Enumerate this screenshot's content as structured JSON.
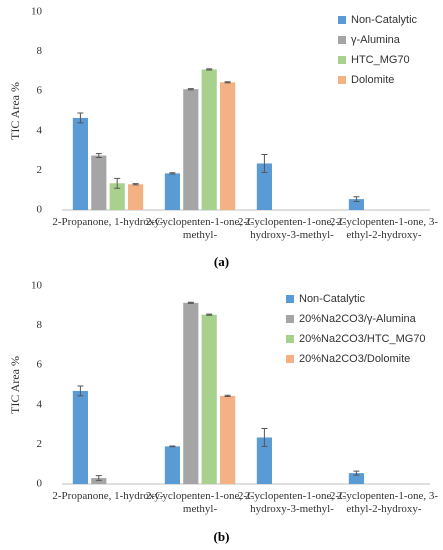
{
  "chart_data": [
    {
      "type": "bar",
      "caption": "(a)",
      "y_label": "TIC Area %",
      "categories": [
        "2-Propanone, 1-hydroxy-",
        "2-Cyclopenten-1-one, 2-methyl-",
        "2-Cyclopenten-1-one, 2-hydroxy-3-methyl-",
        "2-Cyclopenten-1-one, 3-ethyl-2-hydroxy-"
      ],
      "series": [
        {
          "name": "Non-Catalytic",
          "color": "#5b9bd5",
          "values": [
            4.65,
            1.85,
            2.35,
            0.55
          ],
          "errors": [
            0.25,
            0.03,
            0.45,
            0.12
          ]
        },
        {
          "name": "γ-Alumina",
          "color": "#a5a5a5",
          "values": [
            2.75,
            6.1,
            0,
            0
          ],
          "errors": [
            0.1,
            0.03,
            0,
            0
          ]
        },
        {
          "name": "HTC_MG70",
          "color": "#a9d18e",
          "values": [
            1.35,
            7.1,
            0,
            0
          ],
          "errors": [
            0.25,
            0.03,
            0,
            0
          ]
        },
        {
          "name": "Dolomite",
          "color": "#f4b183",
          "values": [
            1.3,
            6.45,
            0,
            0
          ],
          "errors": [
            0.03,
            0.03,
            0,
            0
          ]
        }
      ],
      "ylim": [
        0,
        10
      ],
      "yticks": [
        0,
        2,
        4,
        6,
        8,
        10
      ],
      "legend": "top-right"
    },
    {
      "type": "bar",
      "caption": "(b)",
      "y_label": "TIC Area %",
      "categories": [
        "2-Propanone, 1-hydroxy-",
        "2-Cyclopenten-1-one, 2-methyl-",
        "2-Cyclopenten-1-one, 2-hydroxy-3-methyl-",
        "2-Cyclopenten-1-one, 3-ethyl-2-hydroxy-"
      ],
      "series": [
        {
          "name": "Non-Catalytic",
          "color": "#5b9bd5",
          "values": [
            4.7,
            1.9,
            2.35,
            0.55
          ],
          "errors": [
            0.25,
            0.02,
            0.45,
            0.1
          ]
        },
        {
          "name": "20%Na2CO3/γ-Alumina",
          "color": "#a5a5a5",
          "values": [
            0.3,
            9.15,
            0,
            0
          ],
          "errors": [
            0.12,
            0.03,
            0,
            0
          ]
        },
        {
          "name": "20%Na2CO3/HTC_MG70",
          "color": "#a9d18e",
          "values": [
            0,
            8.55,
            0,
            0
          ],
          "errors": [
            0,
            0.03,
            0,
            0
          ]
        },
        {
          "name": "20%Na2CO3/Dolomite",
          "color": "#f4b183",
          "values": [
            0,
            4.45,
            0,
            0
          ],
          "errors": [
            0,
            0.03,
            0,
            0
          ]
        }
      ],
      "ylim": [
        0,
        10
      ],
      "yticks": [
        0,
        2,
        4,
        6,
        8,
        10
      ],
      "legend": "top-right"
    }
  ]
}
